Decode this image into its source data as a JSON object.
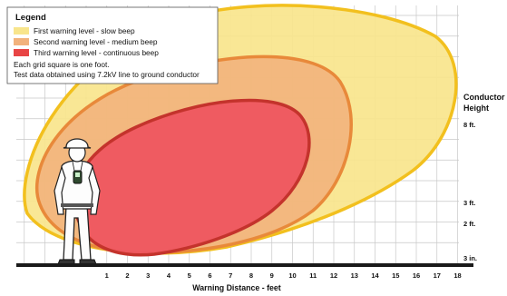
{
  "legend": {
    "title": "Legend",
    "items": [
      {
        "label": "First warning level - slow beep",
        "color": "#f8e58c"
      },
      {
        "label": "Second warning level - medium beep",
        "color": "#f2b27c"
      },
      {
        "label": "Third warning level - continuous beep",
        "color": "#e84545"
      }
    ],
    "notes": [
      "Each grid square is one foot.",
      "Test data obtained using 7.2kV line to ground conductor"
    ]
  },
  "axis": {
    "x_title": "Warning Distance - feet",
    "x_ticks": [
      "1",
      "2",
      "3",
      "4",
      "5",
      "6",
      "7",
      "8",
      "9",
      "10",
      "11",
      "12",
      "13",
      "14",
      "15",
      "16",
      "17",
      "18"
    ]
  },
  "conductor_height": {
    "title_line1": "Conductor",
    "title_line2": "Height",
    "labels": [
      {
        "text": "8 ft.",
        "value_ft": 8
      },
      {
        "text": "3 ft.",
        "value_ft": 3
      },
      {
        "text": "2 ft.",
        "value_ft": 2
      },
      {
        "text": "3 in.",
        "value_ft": 0.25
      }
    ]
  },
  "colors": {
    "zone1_fill": "#f8e58c",
    "zone1_stroke": "#f2c01e",
    "zone2_fill": "#f2b27c",
    "zone2_stroke": "#e8893a",
    "zone3_fill": "#ee5560",
    "zone3_stroke": "#c4332c",
    "grid": "#c8c8c8",
    "ground": "#1a1a1a"
  }
}
